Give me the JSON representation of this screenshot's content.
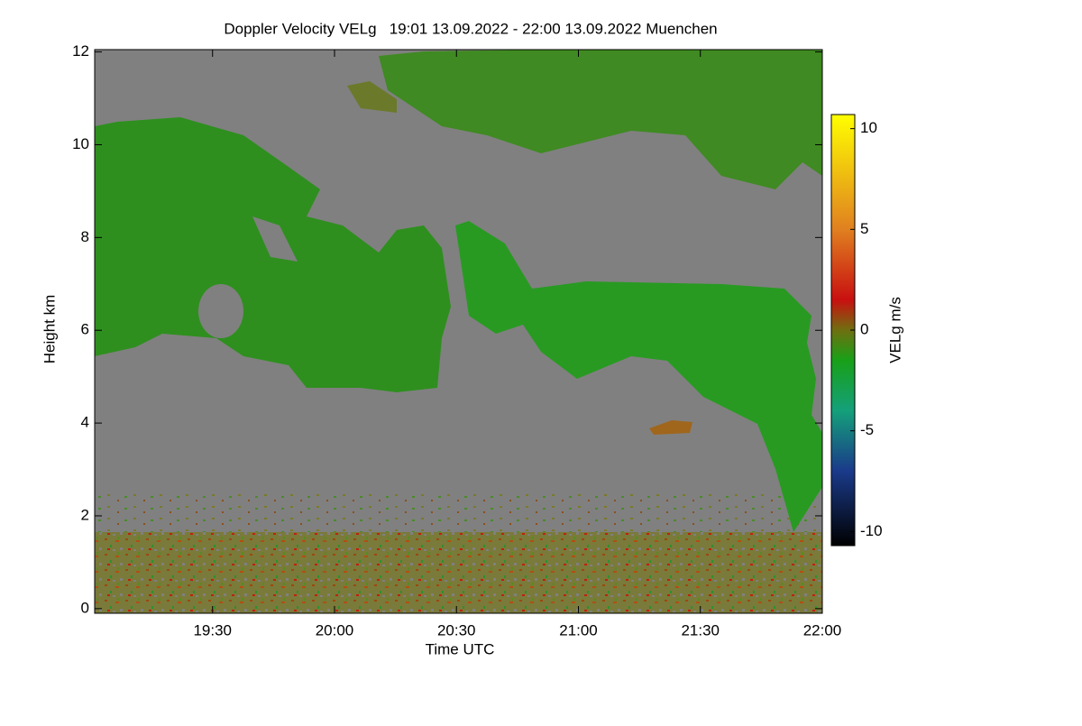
{
  "chart_data": {
    "type": "heatmap",
    "title": "Doppler Velocity VELg   19:01 13.09.2022 - 22:00 13.09.2022 Muenchen",
    "xlabel": "Time UTC",
    "ylabel": "Height km",
    "xlim": [
      19.0167,
      22
    ],
    "xticks": [
      {
        "value": 19.5,
        "label": "19:30"
      },
      {
        "value": 20,
        "label": "20:00"
      },
      {
        "value": 20.5,
        "label": "20:30"
      },
      {
        "value": 21,
        "label": "21:00"
      },
      {
        "value": 21.5,
        "label": "21:30"
      },
      {
        "value": 22,
        "label": "22:00"
      }
    ],
    "ylim": [
      -0.1,
      12.05
    ],
    "yticks": [
      0,
      2,
      4,
      6,
      8,
      10,
      12
    ],
    "colorbar": {
      "label": "VELg m/s",
      "lim": [
        -10.7,
        10.7
      ],
      "ticks": [
        -10,
        -5,
        0,
        5,
        10
      ],
      "colorscale": [
        [
          -10.7,
          "#000000"
        ],
        [
          -7,
          "#1a3a8a"
        ],
        [
          -4,
          "#14a07a"
        ],
        [
          -1.5,
          "#18a018"
        ],
        [
          0,
          "#6f6f10"
        ],
        [
          1.5,
          "#c81010"
        ],
        [
          5,
          "#e08020"
        ],
        [
          10.7,
          "#ffff00"
        ]
      ]
    }
  }
}
